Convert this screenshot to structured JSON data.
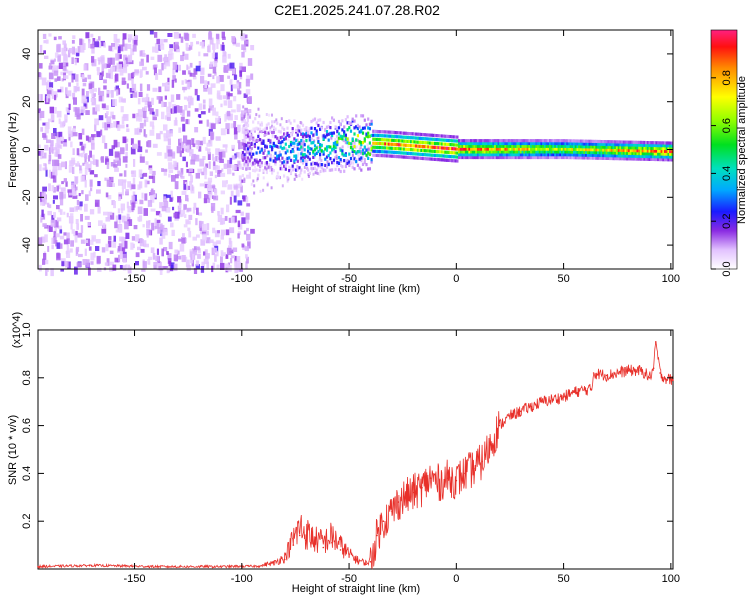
{
  "figure_title": "C2E1.2025.241.07.28.R02",
  "colors": {
    "snr_line": "#e8302a",
    "axis": "#000000",
    "spec_low": "#8a2be2",
    "spec_mid": "#00e0c0",
    "spec_high": "#ff1010"
  },
  "chart_data": [
    {
      "type": "heatmap",
      "name": "spectrogram",
      "title": "C2E1.2025.241.07.28.R02",
      "xlabel": "Height of straight line (km)",
      "ylabel": "Frequency (Hz)",
      "xlim": [
        -195,
        101
      ],
      "ylim": [
        -50,
        50
      ],
      "xticks": [
        -150,
        -100,
        -50,
        0,
        50,
        100
      ],
      "yticks": [
        -40,
        -20,
        0,
        20,
        40
      ],
      "colorbar": {
        "label": "Normalized spectral amplitude",
        "range": [
          0,
          1
        ],
        "ticks": [
          "0.0",
          "0.2",
          "0.4",
          "0.6",
          "0.8"
        ],
        "tick_values": [
          0.0,
          0.2,
          0.4,
          0.6,
          0.8
        ]
      },
      "description_points": [
        {
          "height_km": -195,
          "freq_hz": 0,
          "amplitude": 0.15
        },
        {
          "height_km": -100,
          "freq_hz": 0,
          "amplitude": 0.2
        },
        {
          "height_km": -75,
          "freq_hz": 0,
          "amplitude": 0.45
        },
        {
          "height_km": -50,
          "freq_hz": 3,
          "amplitude": 0.6
        },
        {
          "height_km": -30,
          "freq_hz": 2,
          "amplitude": 0.9
        },
        {
          "height_km": 0,
          "freq_hz": 0,
          "amplitude": 0.95
        },
        {
          "height_km": 50,
          "freq_hz": 0,
          "amplitude": 0.7
        },
        {
          "height_km": 100,
          "freq_hz": -1,
          "amplitude": 0.95
        }
      ]
    },
    {
      "type": "line",
      "name": "snr",
      "xlabel": "Height of straight line (km)",
      "ylabel": "SNR (10 * v/v)",
      "y_multiplier": "(x10^4)",
      "xlim": [
        -195,
        101
      ],
      "ylim": [
        0,
        1.0
      ],
      "xticks": [
        -150,
        -100,
        -50,
        0,
        50,
        100
      ],
      "yticks": [
        0.2,
        0.4,
        0.6,
        0.8,
        1.0
      ],
      "series": [
        {
          "name": "SNR",
          "x": [
            -195,
            -170,
            -140,
            -110,
            -92,
            -85,
            -80,
            -76,
            -73,
            -70,
            -66,
            -62,
            -58,
            -54,
            -50,
            -46,
            -42,
            -40,
            -37,
            -34,
            -30,
            -27,
            -24,
            -20,
            -16,
            -12,
            -8,
            -4,
            0,
            4,
            8,
            12,
            16,
            20,
            25,
            30,
            35,
            40,
            45,
            50,
            55,
            60,
            63,
            64,
            70,
            75,
            80,
            85,
            88,
            90,
            92,
            93,
            95,
            97,
            101
          ],
          "y": [
            0.01,
            0.015,
            0.01,
            0.01,
            0.012,
            0.02,
            0.04,
            0.1,
            0.14,
            0.12,
            0.1,
            0.09,
            0.11,
            0.08,
            0.05,
            0.03,
            0.02,
            0.03,
            0.14,
            0.2,
            0.24,
            0.28,
            0.3,
            0.32,
            0.34,
            0.38,
            0.36,
            0.38,
            0.37,
            0.4,
            0.42,
            0.45,
            0.52,
            0.6,
            0.64,
            0.66,
            0.68,
            0.7,
            0.71,
            0.72,
            0.74,
            0.75,
            0.75,
            0.82,
            0.81,
            0.82,
            0.83,
            0.83,
            0.82,
            0.8,
            0.84,
            0.95,
            0.82,
            0.8,
            0.79
          ]
        }
      ]
    }
  ]
}
